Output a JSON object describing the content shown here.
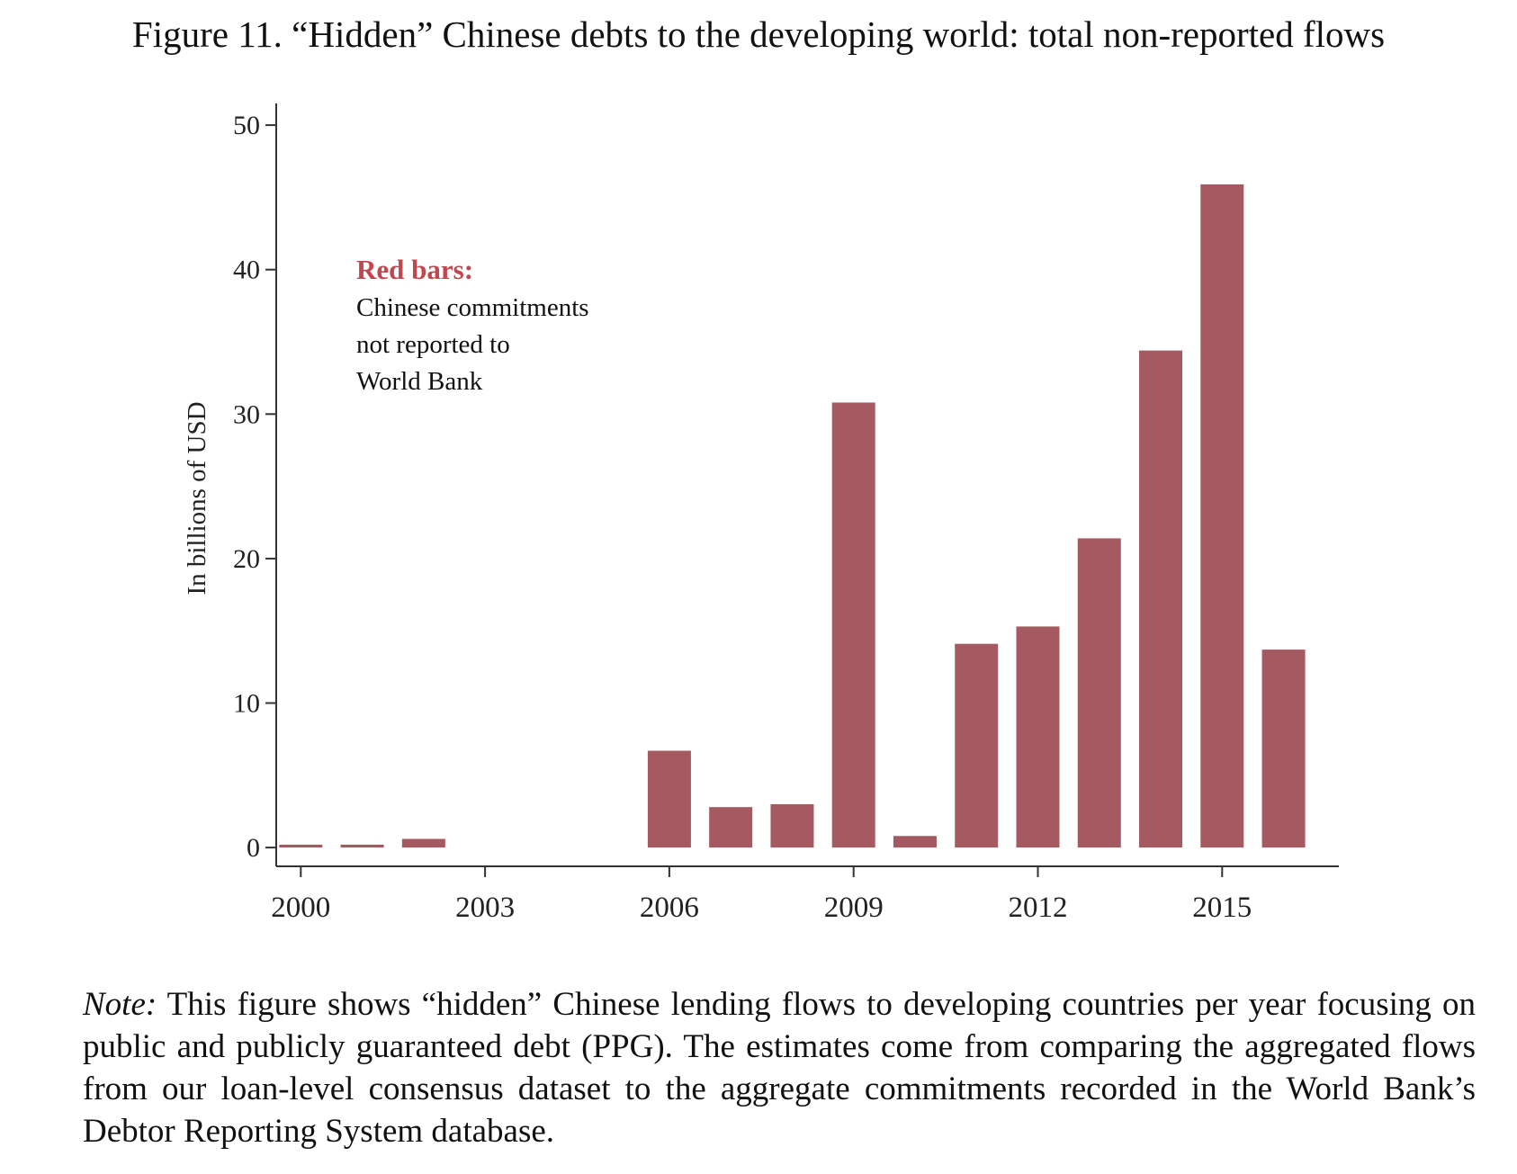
{
  "figure": {
    "title": "Figure 11. “Hidden” Chinese debts to the developing world: total non-reported flows",
    "note_label": "Note:",
    "note_text": "This figure shows “hidden” Chinese lending flows to developing countries per year focusing on public and publicly guaranteed debt (PPG). The estimates come from comparing the aggregated flows from our loan-level consensus dataset to the aggregate commitments recorded in the World Bank’s Debtor Reporting System database."
  },
  "colors": {
    "bar": "#A45A60",
    "axis": "#333333",
    "annotation_head": "#C0474E"
  },
  "chart_data": {
    "type": "bar",
    "title": "",
    "xlabel": "",
    "ylabel": "In billions of USD",
    "x": [
      2000,
      2001,
      2002,
      2006,
      2007,
      2008,
      2009,
      2010,
      2011,
      2012,
      2013,
      2014,
      2015,
      2016
    ],
    "values": [
      0.2,
      0.2,
      0.6,
      6.7,
      2.8,
      3.0,
      30.8,
      0.8,
      14.1,
      15.3,
      21.4,
      34.4,
      45.9,
      13.7
    ],
    "xlim": [
      1999.6,
      2016.9
    ],
    "ylim": [
      -1.3,
      51.5
    ],
    "y_ticks": [
      0,
      10,
      20,
      30,
      40,
      50
    ],
    "x_ticks": [
      2000,
      2003,
      2006,
      2009,
      2012,
      2015
    ],
    "annotation": {
      "heading": "Red bars:",
      "lines": [
        "Chinese commitments",
        "not reported to",
        "World Bank"
      ]
    }
  }
}
